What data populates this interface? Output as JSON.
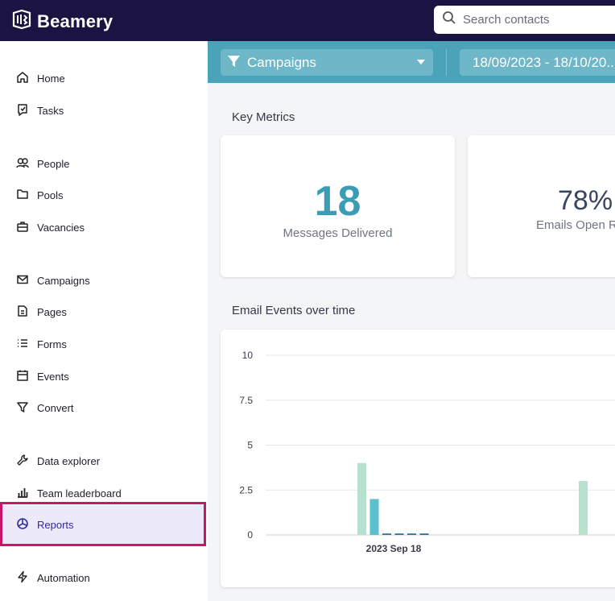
{
  "app": {
    "name": "Beamery"
  },
  "search": {
    "placeholder": "Search contacts"
  },
  "sidebar": {
    "items": [
      {
        "label": "Home",
        "icon": "home-icon"
      },
      {
        "label": "Tasks",
        "icon": "tasks-icon"
      },
      {
        "label": "People",
        "icon": "people-icon"
      },
      {
        "label": "Pools",
        "icon": "folder-icon"
      },
      {
        "label": "Vacancies",
        "icon": "briefcase-icon"
      },
      {
        "label": "Campaigns",
        "icon": "mail-icon"
      },
      {
        "label": "Pages",
        "icon": "page-icon"
      },
      {
        "label": "Forms",
        "icon": "list-icon"
      },
      {
        "label": "Events",
        "icon": "calendar-icon"
      },
      {
        "label": "Convert",
        "icon": "filter-icon"
      },
      {
        "label": "Data explorer",
        "icon": "wrench-icon"
      },
      {
        "label": "Team leaderboard",
        "icon": "bar-chart-icon"
      },
      {
        "label": "Reports",
        "icon": "pie-chart-icon",
        "active": true
      },
      {
        "label": "Automation",
        "icon": "bolt-icon"
      }
    ]
  },
  "filters": {
    "campaign_label": "Campaigns",
    "date_range": "18/09/2023 - 18/10/20..."
  },
  "key_metrics": {
    "title": "Key Metrics",
    "messages_delivered": {
      "value": "18",
      "label": "Messages Delivered"
    },
    "emails_open_rate": {
      "value": "78%",
      "label": "Emails Open R"
    }
  },
  "colors": {
    "topbar": "#1b1442",
    "accent_teal": "#4aa3b8",
    "metric_value": "#3a9db5",
    "active_bg": "#ece9fb",
    "highlight_border": "#c8166a",
    "bar_light": "#b7e0cf",
    "bar_teal": "#5bbfcc",
    "bar_dark": "#2f6f9a"
  },
  "chart_data": {
    "type": "bar",
    "title": "Email Events over time",
    "xlabel": "",
    "ylabel": "",
    "ylim": [
      0,
      10
    ],
    "yticks": [
      "10",
      "7.5",
      "5",
      "2.5",
      "0"
    ],
    "categories": [
      "2023 Sep 18",
      ""
    ],
    "grid": true,
    "series": [
      {
        "values": [
          4,
          3
        ],
        "color": "#b7e0cf"
      },
      {
        "values": [
          2,
          0
        ],
        "color": "#5bbfcc"
      },
      {
        "values": [
          0.08,
          0
        ],
        "color": "#2f6f9a"
      },
      {
        "values": [
          0.08,
          0
        ],
        "color": "#2f6f9a"
      },
      {
        "values": [
          0.08,
          0
        ],
        "color": "#2f6f9a"
      },
      {
        "values": [
          0.08,
          0
        ],
        "color": "#2f6f9a"
      }
    ]
  }
}
